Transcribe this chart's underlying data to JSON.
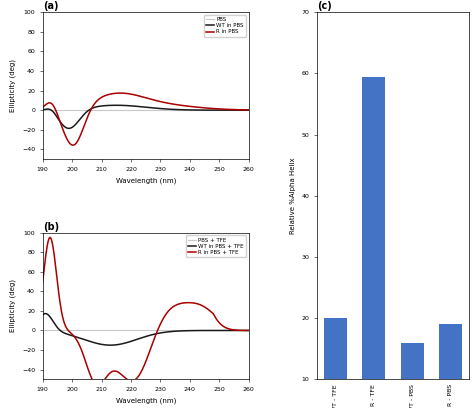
{
  "panel_a": {
    "title": "(a)",
    "xlabel": "Wavelength (nm)",
    "ylabel": "Ellipticity (deg)",
    "xlim": [
      190,
      260
    ],
    "ylim": [
      -50,
      100
    ],
    "yticks": [
      -40,
      -20,
      0,
      20,
      40,
      60,
      80,
      100
    ],
    "legend": [
      "PBS",
      "WT in PBS",
      "R in PBS"
    ],
    "pbs_color": "#c8c8c8",
    "wt_color": "#1a1a1a",
    "r_color": "#aa0000"
  },
  "panel_b": {
    "title": "(b)",
    "xlabel": "Wavelength (nm)",
    "ylabel": "Ellipticity (deg)",
    "xlim": [
      190,
      260
    ],
    "ylim": [
      -50,
      100
    ],
    "yticks": [
      -40,
      -20,
      0,
      20,
      40,
      60,
      80,
      100
    ],
    "legend": [
      "PBS + TFE",
      "WT in PBS + TFE",
      "R in PBS + TFE"
    ],
    "pbs_color": "#c8c8c8",
    "wt_color": "#1a1a1a",
    "r_color": "#aa0000"
  },
  "panel_c": {
    "title": "(c)",
    "ylabel": "Relative %Alpha Helix",
    "categories": [
      "WT - TFE",
      "R - TFE",
      "WT - PBS",
      "R - PBS"
    ],
    "values": [
      20.0,
      59.5,
      16.0,
      19.0
    ],
    "bar_color": "#4472c4",
    "ylim": [
      10,
      70
    ],
    "yticks": [
      10,
      20,
      30,
      40,
      50,
      60,
      70
    ]
  }
}
